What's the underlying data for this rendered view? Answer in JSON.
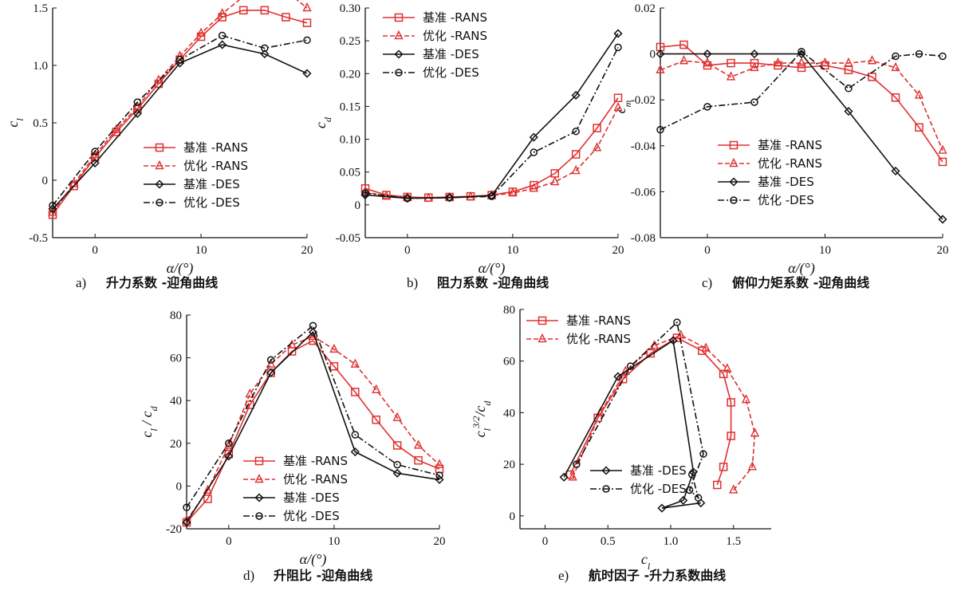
{
  "chart_data": [
    {
      "type": "line",
      "panel": "a)",
      "caption": "升力系数 -迎角曲线",
      "xlabel": "α/(°)",
      "ylabel": "c_l",
      "xlim": [
        -4,
        20
      ],
      "ylim": [
        -0.5,
        1.5
      ],
      "xticks": [
        0,
        10,
        20
      ],
      "yticks": [
        -0.5,
        0,
        0.5,
        1.0,
        1.5
      ],
      "tick_labels_x": [
        "0",
        "10",
        "20"
      ],
      "tick_labels_y": [
        "-0.5",
        "0",
        "0.5",
        "1.0",
        "1.5"
      ],
      "legend_position": "center-right",
      "series": [
        {
          "name": "基准 -RANS",
          "x": [
            -4,
            -2,
            0,
            2,
            4,
            6,
            8,
            10,
            12,
            14,
            16,
            18,
            20
          ],
          "y": [
            -0.3,
            -0.05,
            0.2,
            0.42,
            0.62,
            0.84,
            1.05,
            1.25,
            1.42,
            1.48,
            1.48,
            1.42,
            1.37
          ]
        },
        {
          "name": "优化 -RANS",
          "x": [
            -4,
            -2,
            0,
            2,
            4,
            6,
            8,
            10,
            12,
            14,
            16,
            18,
            20
          ],
          "y": [
            -0.28,
            -0.03,
            0.22,
            0.44,
            0.64,
            0.87,
            1.08,
            1.28,
            1.45,
            1.6,
            1.67,
            1.65,
            1.5
          ]
        },
        {
          "name": "基准 -DES",
          "x": [
            -4,
            0,
            4,
            8,
            12,
            16,
            20
          ],
          "y": [
            -0.25,
            0.15,
            0.58,
            1.02,
            1.18,
            1.1,
            0.93
          ]
        },
        {
          "name": "优化 -DES",
          "x": [
            -4,
            0,
            4,
            8,
            12,
            16,
            20
          ],
          "y": [
            -0.22,
            0.25,
            0.68,
            1.05,
            1.26,
            1.15,
            1.22
          ]
        }
      ]
    },
    {
      "type": "line",
      "panel": "b)",
      "caption": "阻力系数 -迎角曲线",
      "xlabel": "α/(°)",
      "ylabel": "c_d",
      "xlim": [
        -4,
        20
      ],
      "ylim": [
        -0.05,
        0.3
      ],
      "xticks": [
        0,
        10,
        20
      ],
      "yticks": [
        -0.05,
        0,
        0.05,
        0.1,
        0.15,
        0.2,
        0.25,
        0.3
      ],
      "tick_labels_x": [
        "0",
        "10",
        "20"
      ],
      "tick_labels_y": [
        "-0.05",
        "0",
        "0.05",
        "0.10",
        "0.15",
        "0.20",
        "0.25",
        "0.30"
      ],
      "legend_position": "top-left",
      "series": [
        {
          "name": "基准 -RANS",
          "x": [
            -4,
            -2,
            0,
            2,
            4,
            6,
            8,
            10,
            12,
            14,
            16,
            18,
            20
          ],
          "y": [
            0.025,
            0.015,
            0.012,
            0.011,
            0.012,
            0.013,
            0.015,
            0.02,
            0.03,
            0.048,
            0.077,
            0.117,
            0.163
          ]
        },
        {
          "name": "优化 -RANS",
          "x": [
            -4,
            -2,
            0,
            2,
            4,
            6,
            8,
            10,
            12,
            14,
            16,
            18,
            20
          ],
          "y": [
            0.02,
            0.013,
            0.011,
            0.01,
            0.011,
            0.012,
            0.014,
            0.018,
            0.025,
            0.035,
            0.052,
            0.087,
            0.148
          ]
        },
        {
          "name": "基准 -DES",
          "x": [
            -4,
            0,
            4,
            8,
            12,
            16,
            20
          ],
          "y": [
            0.015,
            0.01,
            0.011,
            0.014,
            0.103,
            0.167,
            0.261
          ]
        },
        {
          "name": "优化 -DES",
          "x": [
            -4,
            0,
            4,
            8,
            12,
            16,
            20
          ],
          "y": [
            0.018,
            0.01,
            0.011,
            0.013,
            0.08,
            0.112,
            0.24
          ]
        }
      ]
    },
    {
      "type": "line",
      "panel": "c)",
      "caption": "俯仰力矩系数 -迎角曲线",
      "xlabel": "α/(°)",
      "ylabel": "c_m",
      "xlim": [
        -4,
        20
      ],
      "ylim": [
        -0.08,
        0.02
      ],
      "xticks": [
        0,
        10,
        20
      ],
      "yticks": [
        -0.08,
        -0.06,
        -0.04,
        -0.02,
        0,
        0.02
      ],
      "tick_labels_x": [
        "0",
        "10",
        "20"
      ],
      "tick_labels_y": [
        "-0.08",
        "-0.06",
        "-0.04",
        "-0.02",
        "0",
        "0.02"
      ],
      "legend_position": "bottom-left",
      "series": [
        {
          "name": "基准 -RANS",
          "x": [
            -4,
            -2,
            0,
            2,
            4,
            6,
            8,
            10,
            12,
            14,
            16,
            18,
            20
          ],
          "y": [
            0.003,
            0.004,
            -0.005,
            -0.004,
            -0.004,
            -0.005,
            -0.006,
            -0.005,
            -0.007,
            -0.01,
            -0.019,
            -0.032,
            -0.047
          ]
        },
        {
          "name": "优化 -RANS",
          "x": [
            -4,
            -2,
            0,
            2,
            4,
            6,
            8,
            10,
            12,
            14,
            16,
            18,
            20
          ],
          "y": [
            -0.007,
            -0.003,
            -0.004,
            -0.01,
            -0.006,
            -0.004,
            -0.004,
            -0.004,
            -0.004,
            -0.003,
            -0.006,
            -0.018,
            -0.042
          ]
        },
        {
          "name": "基准 -DES",
          "x": [
            -4,
            0,
            4,
            8,
            12,
            16,
            20
          ],
          "y": [
            0.0,
            0.0,
            0.0,
            0.0,
            -0.025,
            -0.051,
            -0.072
          ]
        },
        {
          "name": "优化 -DES",
          "x": [
            -4,
            0,
            4,
            8,
            12,
            16,
            18,
            20
          ],
          "y": [
            -0.033,
            -0.023,
            -0.021,
            0.001,
            -0.015,
            -0.001,
            0.0,
            -0.001
          ]
        }
      ]
    },
    {
      "type": "line",
      "panel": "d)",
      "caption": "升阻比 -迎角曲线",
      "xlabel": "α/(°)",
      "ylabel": "c_l/c_d",
      "xlim": [
        -4,
        20
      ],
      "ylim": [
        -20,
        80
      ],
      "xticks": [
        0,
        10,
        20
      ],
      "yticks": [
        -20,
        0,
        20,
        40,
        60,
        80
      ],
      "tick_labels_x": [
        "0",
        "10",
        "20"
      ],
      "tick_labels_y": [
        "-20",
        "0",
        "20",
        "40",
        "60",
        "80"
      ],
      "legend_position": "bottom-center",
      "series": [
        {
          "name": "基准 -RANS",
          "x": [
            -4,
            -2,
            0,
            2,
            4,
            6,
            8,
            10,
            12,
            14,
            16,
            18,
            20
          ],
          "y": [
            -17,
            -6,
            15,
            38,
            53,
            63,
            68,
            56,
            44,
            31,
            19,
            12,
            8
          ]
        },
        {
          "name": "优化 -RANS",
          "x": [
            -4,
            -2,
            0,
            2,
            4,
            6,
            8,
            10,
            12,
            14,
            16,
            18,
            20
          ],
          "y": [
            -16,
            -2,
            19,
            43,
            57,
            66,
            70,
            64,
            57,
            45,
            32,
            19,
            10
          ]
        },
        {
          "name": "基准 -DES",
          "x": [
            -4,
            0,
            4,
            8,
            12,
            16,
            20
          ],
          "y": [
            -17,
            14,
            53,
            72,
            16,
            6,
            3
          ]
        },
        {
          "name": "优化 -DES",
          "x": [
            -4,
            0,
            4,
            8,
            12,
            16,
            20
          ],
          "y": [
            -10,
            20,
            59,
            75,
            24,
            10,
            5
          ]
        }
      ]
    },
    {
      "type": "line",
      "panel": "e)",
      "caption": "航时因子 -升力系数曲线",
      "xlabel": "c_l",
      "ylabel": "c_l^{3/2}/c_d",
      "xlim": [
        -0.2,
        1.8
      ],
      "ylim": [
        -5,
        80
      ],
      "xticks": [
        0,
        0.5,
        1.0,
        1.5
      ],
      "yticks": [
        0,
        20,
        40,
        60,
        80
      ],
      "tick_labels_x": [
        "0",
        "0.5",
        "1.0",
        "1.5"
      ],
      "tick_labels_y": [
        "0",
        "20",
        "40",
        "60",
        "80"
      ],
      "legend_position": "top-left; bottom-center",
      "series": [
        {
          "name": "基准 -RANS",
          "x": [
            0.2,
            0.42,
            0.62,
            0.84,
            1.05,
            1.25,
            1.42,
            1.48,
            1.48,
            1.42,
            1.37
          ],
          "y": [
            16,
            38,
            53,
            63,
            69,
            64,
            55,
            44,
            31,
            19,
            12
          ]
        },
        {
          "name": "优化 -RANS",
          "x": [
            0.22,
            0.44,
            0.64,
            0.87,
            1.08,
            1.28,
            1.45,
            1.6,
            1.67,
            1.65,
            1.5
          ],
          "y": [
            15,
            40,
            56,
            66,
            70,
            65,
            57,
            45,
            32,
            19,
            10
          ]
        },
        {
          "name": "基准 -DES",
          "x": [
            0.15,
            0.58,
            1.02,
            1.18,
            1.1,
            0.93,
            1.24
          ],
          "y": [
            15,
            54,
            68,
            17,
            6,
            3,
            5
          ]
        },
        {
          "name": "优化 -DES",
          "x": [
            0.25,
            0.68,
            1.05,
            1.26,
            1.15,
            1.22,
            1.17
          ],
          "y": [
            20,
            58,
            75,
            24,
            10,
            7,
            16
          ]
        }
      ]
    }
  ],
  "styles": {
    "red": "#e03030",
    "black": "#111111"
  }
}
